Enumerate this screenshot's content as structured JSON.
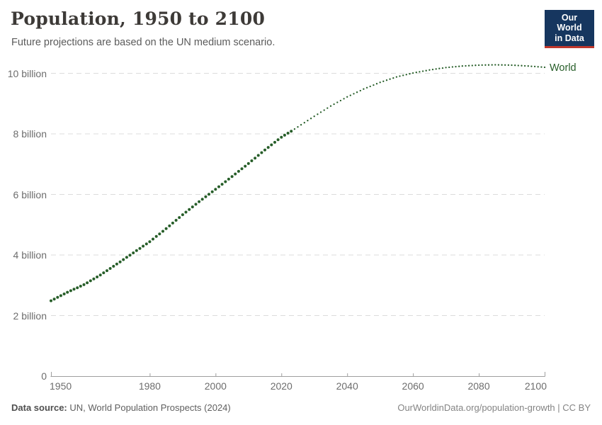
{
  "header": {
    "title": "Population, 1950 to 2100",
    "subtitle": "Future projections are based on the UN medium scenario.",
    "logo": {
      "line1": "Our World",
      "line2": "in Data",
      "bg_color": "#16365f",
      "accent_color": "#c0372c",
      "text_color": "#ffffff"
    }
  },
  "footer": {
    "source_label": "Data source:",
    "source_text": " UN, World Population Prospects (2024)",
    "link_text": "OurWorldinData.org/population-growth | CC BY"
  },
  "chart_data": {
    "type": "line",
    "title": "Population, 1950 to 2100",
    "xlabel": "",
    "ylabel": "",
    "unit": "billion people",
    "xlim": [
      1950,
      2100
    ],
    "ylim": [
      0,
      10.7
    ],
    "x_ticks": [
      1950,
      1980,
      2000,
      2020,
      2040,
      2060,
      2080,
      2100
    ],
    "y_ticks": [
      {
        "value": 0,
        "label": "0"
      },
      {
        "value": 2,
        "label": "2 billion"
      },
      {
        "value": 4,
        "label": "4 billion"
      },
      {
        "value": 6,
        "label": "6 billion"
      },
      {
        "value": 8,
        "label": "8 billion"
      },
      {
        "value": 10,
        "label": "10 billion"
      }
    ],
    "grid": "dashed-horizontal",
    "legend_position": "end-of-line",
    "series": [
      {
        "name": "World",
        "color": "#275e29",
        "style_historical": "solid-round-markers",
        "style_projection": "dotted",
        "projection_from": 2023,
        "points_interval_years": 1,
        "points": [
          [
            1950,
            2.49
          ],
          [
            1955,
            2.77
          ],
          [
            1960,
            3.02
          ],
          [
            1965,
            3.34
          ],
          [
            1970,
            3.7
          ],
          [
            1975,
            4.07
          ],
          [
            1980,
            4.44
          ],
          [
            1985,
            4.87
          ],
          [
            1990,
            5.33
          ],
          [
            1995,
            5.76
          ],
          [
            2000,
            6.17
          ],
          [
            2005,
            6.59
          ],
          [
            2010,
            7.02
          ],
          [
            2015,
            7.47
          ],
          [
            2020,
            7.89
          ],
          [
            2023,
            8.09
          ],
          [
            2025,
            8.23
          ],
          [
            2030,
            8.58
          ],
          [
            2035,
            8.92
          ],
          [
            2040,
            9.22
          ],
          [
            2045,
            9.48
          ],
          [
            2050,
            9.7
          ],
          [
            2055,
            9.88
          ],
          [
            2060,
            10.01
          ],
          [
            2065,
            10.11
          ],
          [
            2070,
            10.19
          ],
          [
            2075,
            10.24
          ],
          [
            2080,
            10.27
          ],
          [
            2085,
            10.28
          ],
          [
            2090,
            10.27
          ],
          [
            2095,
            10.24
          ],
          [
            2100,
            10.2
          ]
        ]
      }
    ]
  }
}
